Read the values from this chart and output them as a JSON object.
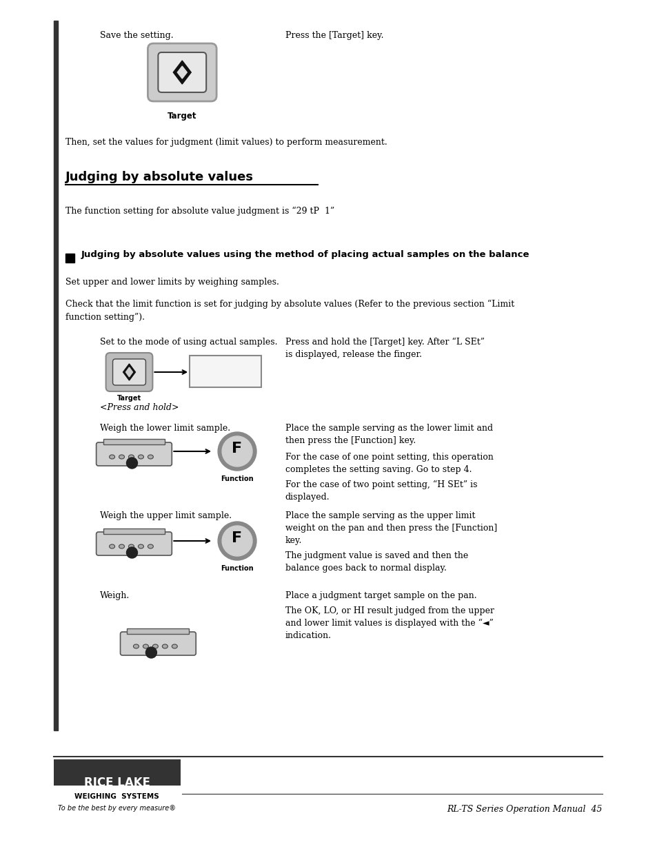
{
  "bg_color": "#ffffff",
  "left_bar_color": "#333333",
  "text_color": "#000000",
  "gray_color": "#888888",
  "title": "Judging by absolute values",
  "subtitle_bold": "Judging by absolute values using the method of placing actual samples on the balance",
  "page_number": "RL-TS Series Operation Manual  45",
  "footer_logo": "RICE LAKE",
  "footer_sub": "WEIGHING  SYSTEMS",
  "footer_tag": "To be the best by every measure®"
}
